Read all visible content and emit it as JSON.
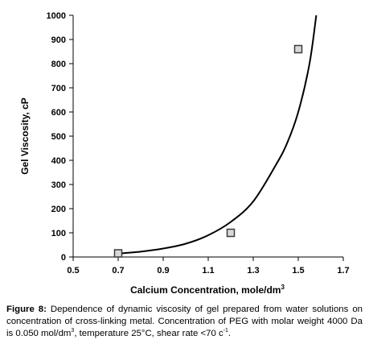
{
  "chart_data": {
    "type": "scatter",
    "xlabel": "Calcium Concentration, mole/dm",
    "xlabel_sup": "3",
    "ylabel": "Gel Viscosity, cP",
    "xlim": [
      0.5,
      1.7
    ],
    "ylim": [
      0,
      1000
    ],
    "x_ticks": [
      "0.5",
      "0.7",
      "0.9",
      "1.1",
      "1.3",
      "1.5",
      "1.7"
    ],
    "y_ticks": [
      "0",
      "100",
      "200",
      "300",
      "400",
      "500",
      "600",
      "700",
      "800",
      "900",
      "1000"
    ],
    "grid": false,
    "legend": "none",
    "points": [
      {
        "x": 0.7,
        "y": 15
      },
      {
        "x": 1.2,
        "y": 100
      },
      {
        "x": 1.5,
        "y": 860
      }
    ],
    "trend_line": {
      "type": "exponential-fit",
      "curve": [
        {
          "x": 0.7,
          "y": 14
        },
        {
          "x": 0.8,
          "y": 22
        },
        {
          "x": 0.9,
          "y": 35
        },
        {
          "x": 1.0,
          "y": 55
        },
        {
          "x": 1.1,
          "y": 90
        },
        {
          "x": 1.2,
          "y": 145
        },
        {
          "x": 1.3,
          "y": 230
        },
        {
          "x": 1.4,
          "y": 380
        },
        {
          "x": 1.45,
          "y": 470
        },
        {
          "x": 1.5,
          "y": 600
        },
        {
          "x": 1.55,
          "y": 800
        },
        {
          "x": 1.58,
          "y": 1000
        }
      ]
    },
    "colors": {
      "curve": "#000000",
      "marker_fill": "#d9d9d9",
      "marker_stroke": "#3a3a3a",
      "axis": "#000000"
    }
  },
  "caption": {
    "label": "Figure 8:",
    "text_part1": " Dependence of dynamic viscosity of gel prepared from water solutions on concentration of cross-linking metal. Concentration of PEG with molar weight 4000 Da is 0.050 mol/dm",
    "sup1": "3",
    "text_part2": ", temperature 25°C, shear rate <70 c",
    "sup2": "-1",
    "text_part3": "."
  }
}
